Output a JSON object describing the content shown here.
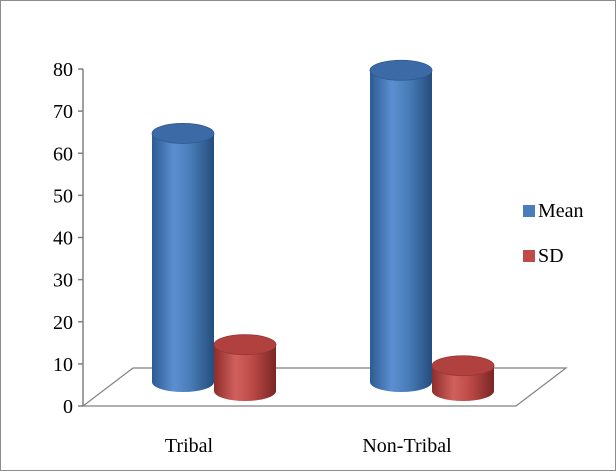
{
  "chart_data": {
    "type": "bar",
    "style": "3d-cylinder",
    "categories": [
      "Tribal",
      "Non-Tribal"
    ],
    "series": [
      {
        "name": "Mean",
        "values": [
          59,
          74
        ],
        "color": "#4a7ebb"
      },
      {
        "name": "SD",
        "values": [
          11,
          6
        ],
        "color": "#be4b48"
      }
    ],
    "ylim": [
      0,
      80
    ],
    "yticks": [
      "0",
      "10",
      "20",
      "30",
      "40",
      "50",
      "60",
      "70",
      "80"
    ],
    "legend_position": "right",
    "grid": false
  }
}
